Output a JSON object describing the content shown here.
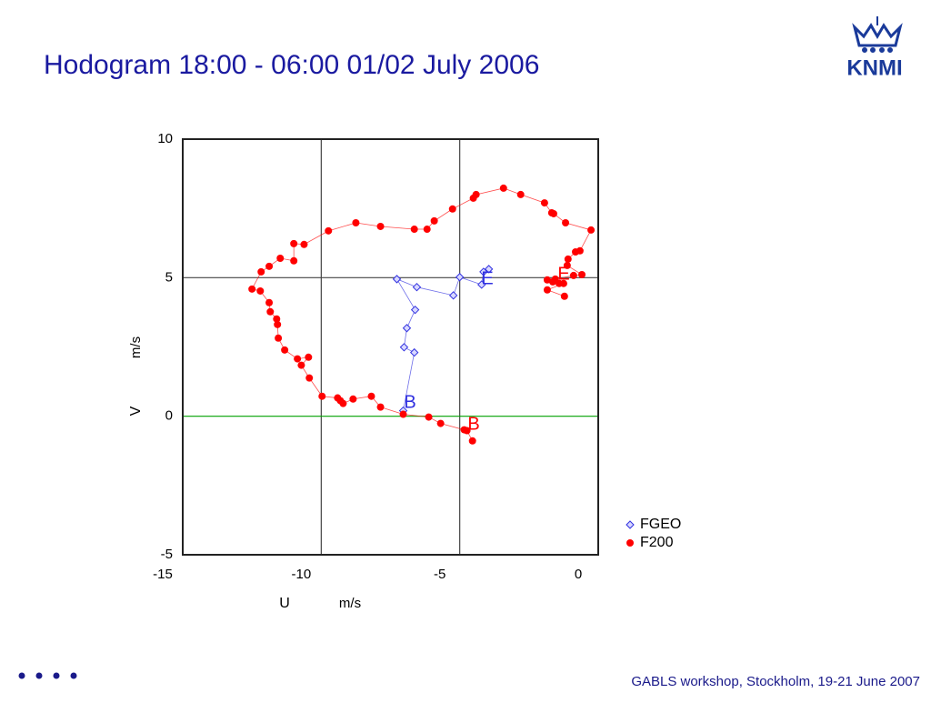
{
  "title": "Hodogram 18:00 - 06:00 01/02 July 2006",
  "logo": "KNMI",
  "footer": "GABLS workshop, Stockholm, 19-21 June 2007",
  "chart_data": {
    "type": "scatter",
    "x_label": "U",
    "x_unit": "m/s",
    "y_label": "V",
    "y_unit": "m/s",
    "xlim": [
      -15,
      0
    ],
    "xticks": [
      -15,
      -10,
      -5,
      0
    ],
    "ylim": [
      -5,
      10
    ],
    "yticks": [
      -5,
      0,
      5,
      10
    ],
    "grid": true,
    "grid_color": "#444444",
    "zero_line_color": "#00a000",
    "legend": "right",
    "series": [
      {
        "name": "FGEO",
        "color": "#3030e0",
        "marker": "diamond",
        "x": [
          -7.04,
          -6.64,
          -7.01,
          -6.91,
          -6.61,
          -7.27,
          -6.55,
          -5.23,
          -5.0,
          -4.21,
          -4.14,
          -3.95
        ],
        "values": [
          0.2,
          2.3,
          2.49,
          3.18,
          3.84,
          4.95,
          4.66,
          4.36,
          5.02,
          4.75,
          5.21,
          5.31
        ]
      },
      {
        "name": "F200",
        "color": "#ff0000",
        "marker": "circle",
        "x": [
          -4.54,
          -4.74,
          -4.84,
          -5.69,
          -6.12,
          -7.04,
          -7.86,
          -8.19,
          -8.85,
          -9.21,
          -9.31,
          -9.41,
          -9.97,
          -10.43,
          -10.72,
          -10.46,
          -10.86,
          -11.32,
          -11.55,
          -11.58,
          -11.61,
          -11.84,
          -11.88,
          -12.2,
          -12.5,
          -12.17,
          -11.88,
          -11.48,
          -10.99,
          -10.99,
          -10.62,
          -9.74,
          -8.75,
          -7.86,
          -6.64,
          -6.18,
          -5.92,
          -5.26,
          -4.51,
          -4.41,
          -3.42,
          -2.8,
          -1.94,
          -1.68,
          -1.61,
          -1.18,
          -0.26,
          -0.66,
          -0.82,
          -1.09,
          -1.12,
          -0.59,
          -0.89,
          -1.55,
          -1.84,
          -1.64,
          -1.41,
          -1.25,
          -1.84,
          -1.22
        ],
        "values": [
          -0.89,
          -0.52,
          -0.49,
          -0.26,
          -0.03,
          0.07,
          0.33,
          0.72,
          0.62,
          0.46,
          0.56,
          0.66,
          0.72,
          1.38,
          1.84,
          2.13,
          2.07,
          2.39,
          2.82,
          3.31,
          3.51,
          3.77,
          4.1,
          4.52,
          4.59,
          5.21,
          5.41,
          5.7,
          5.61,
          6.23,
          6.2,
          6.69,
          6.98,
          6.85,
          6.75,
          6.75,
          7.05,
          7.48,
          7.87,
          8.0,
          8.23,
          8.0,
          7.7,
          7.34,
          7.31,
          6.98,
          6.72,
          5.97,
          5.93,
          5.67,
          5.44,
          5.11,
          5.08,
          4.95,
          4.92,
          4.85,
          4.79,
          4.79,
          4.56,
          4.33
        ]
      }
    ],
    "annotations": [
      {
        "text": "B",
        "color": "#3030e0"
      },
      {
        "text": "E",
        "color": "#3030e0"
      },
      {
        "text": "B",
        "color": "#ff0000"
      },
      {
        "text": "E",
        "color": "#ff0000"
      }
    ]
  }
}
